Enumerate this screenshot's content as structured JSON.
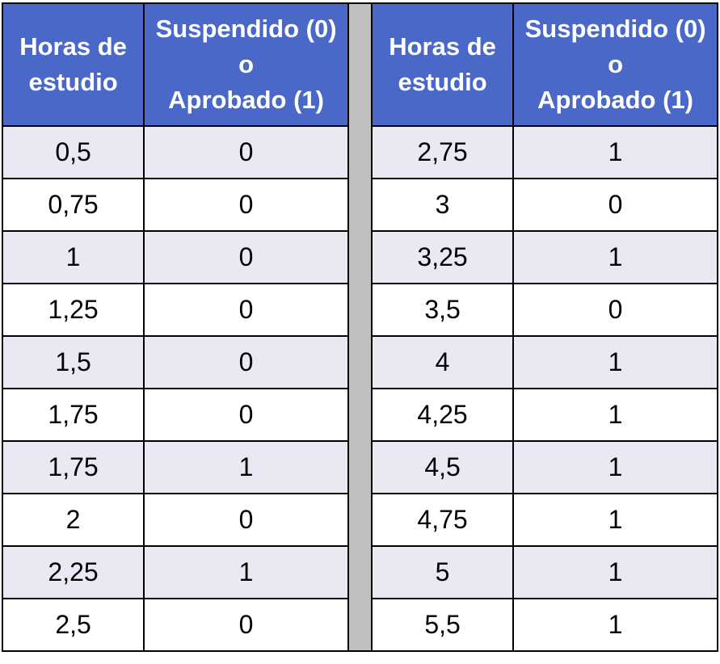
{
  "header": {
    "hours": "Horas de estudio",
    "result_line1": "Suspendido (0)",
    "result_line2": "o",
    "result_line3": "Aprobado (1)"
  },
  "left_rows": [
    {
      "hours": "0,5",
      "result": "0"
    },
    {
      "hours": "0,75",
      "result": "0"
    },
    {
      "hours": "1",
      "result": "0"
    },
    {
      "hours": "1,25",
      "result": "0"
    },
    {
      "hours": "1,5",
      "result": "0"
    },
    {
      "hours": "1,75",
      "result": "0"
    },
    {
      "hours": "1,75",
      "result": "1"
    },
    {
      "hours": "2",
      "result": "0"
    },
    {
      "hours": "2,25",
      "result": "1"
    },
    {
      "hours": "2,5",
      "result": "0"
    }
  ],
  "right_rows": [
    {
      "hours": "2,75",
      "result": "1"
    },
    {
      "hours": "3",
      "result": "0"
    },
    {
      "hours": "3,25",
      "result": "1"
    },
    {
      "hours": "3,5",
      "result": "0"
    },
    {
      "hours": "4",
      "result": "1"
    },
    {
      "hours": "4,25",
      "result": "1"
    },
    {
      "hours": "4,5",
      "result": "1"
    },
    {
      "hours": "4,75",
      "result": "1"
    },
    {
      "hours": "5",
      "result": "1"
    },
    {
      "hours": "5,5",
      "result": "1"
    }
  ],
  "colors": {
    "header_bg": "#4a68c7",
    "stripe_bg": "#e8e9f3",
    "separator": "#c0c0c0"
  }
}
